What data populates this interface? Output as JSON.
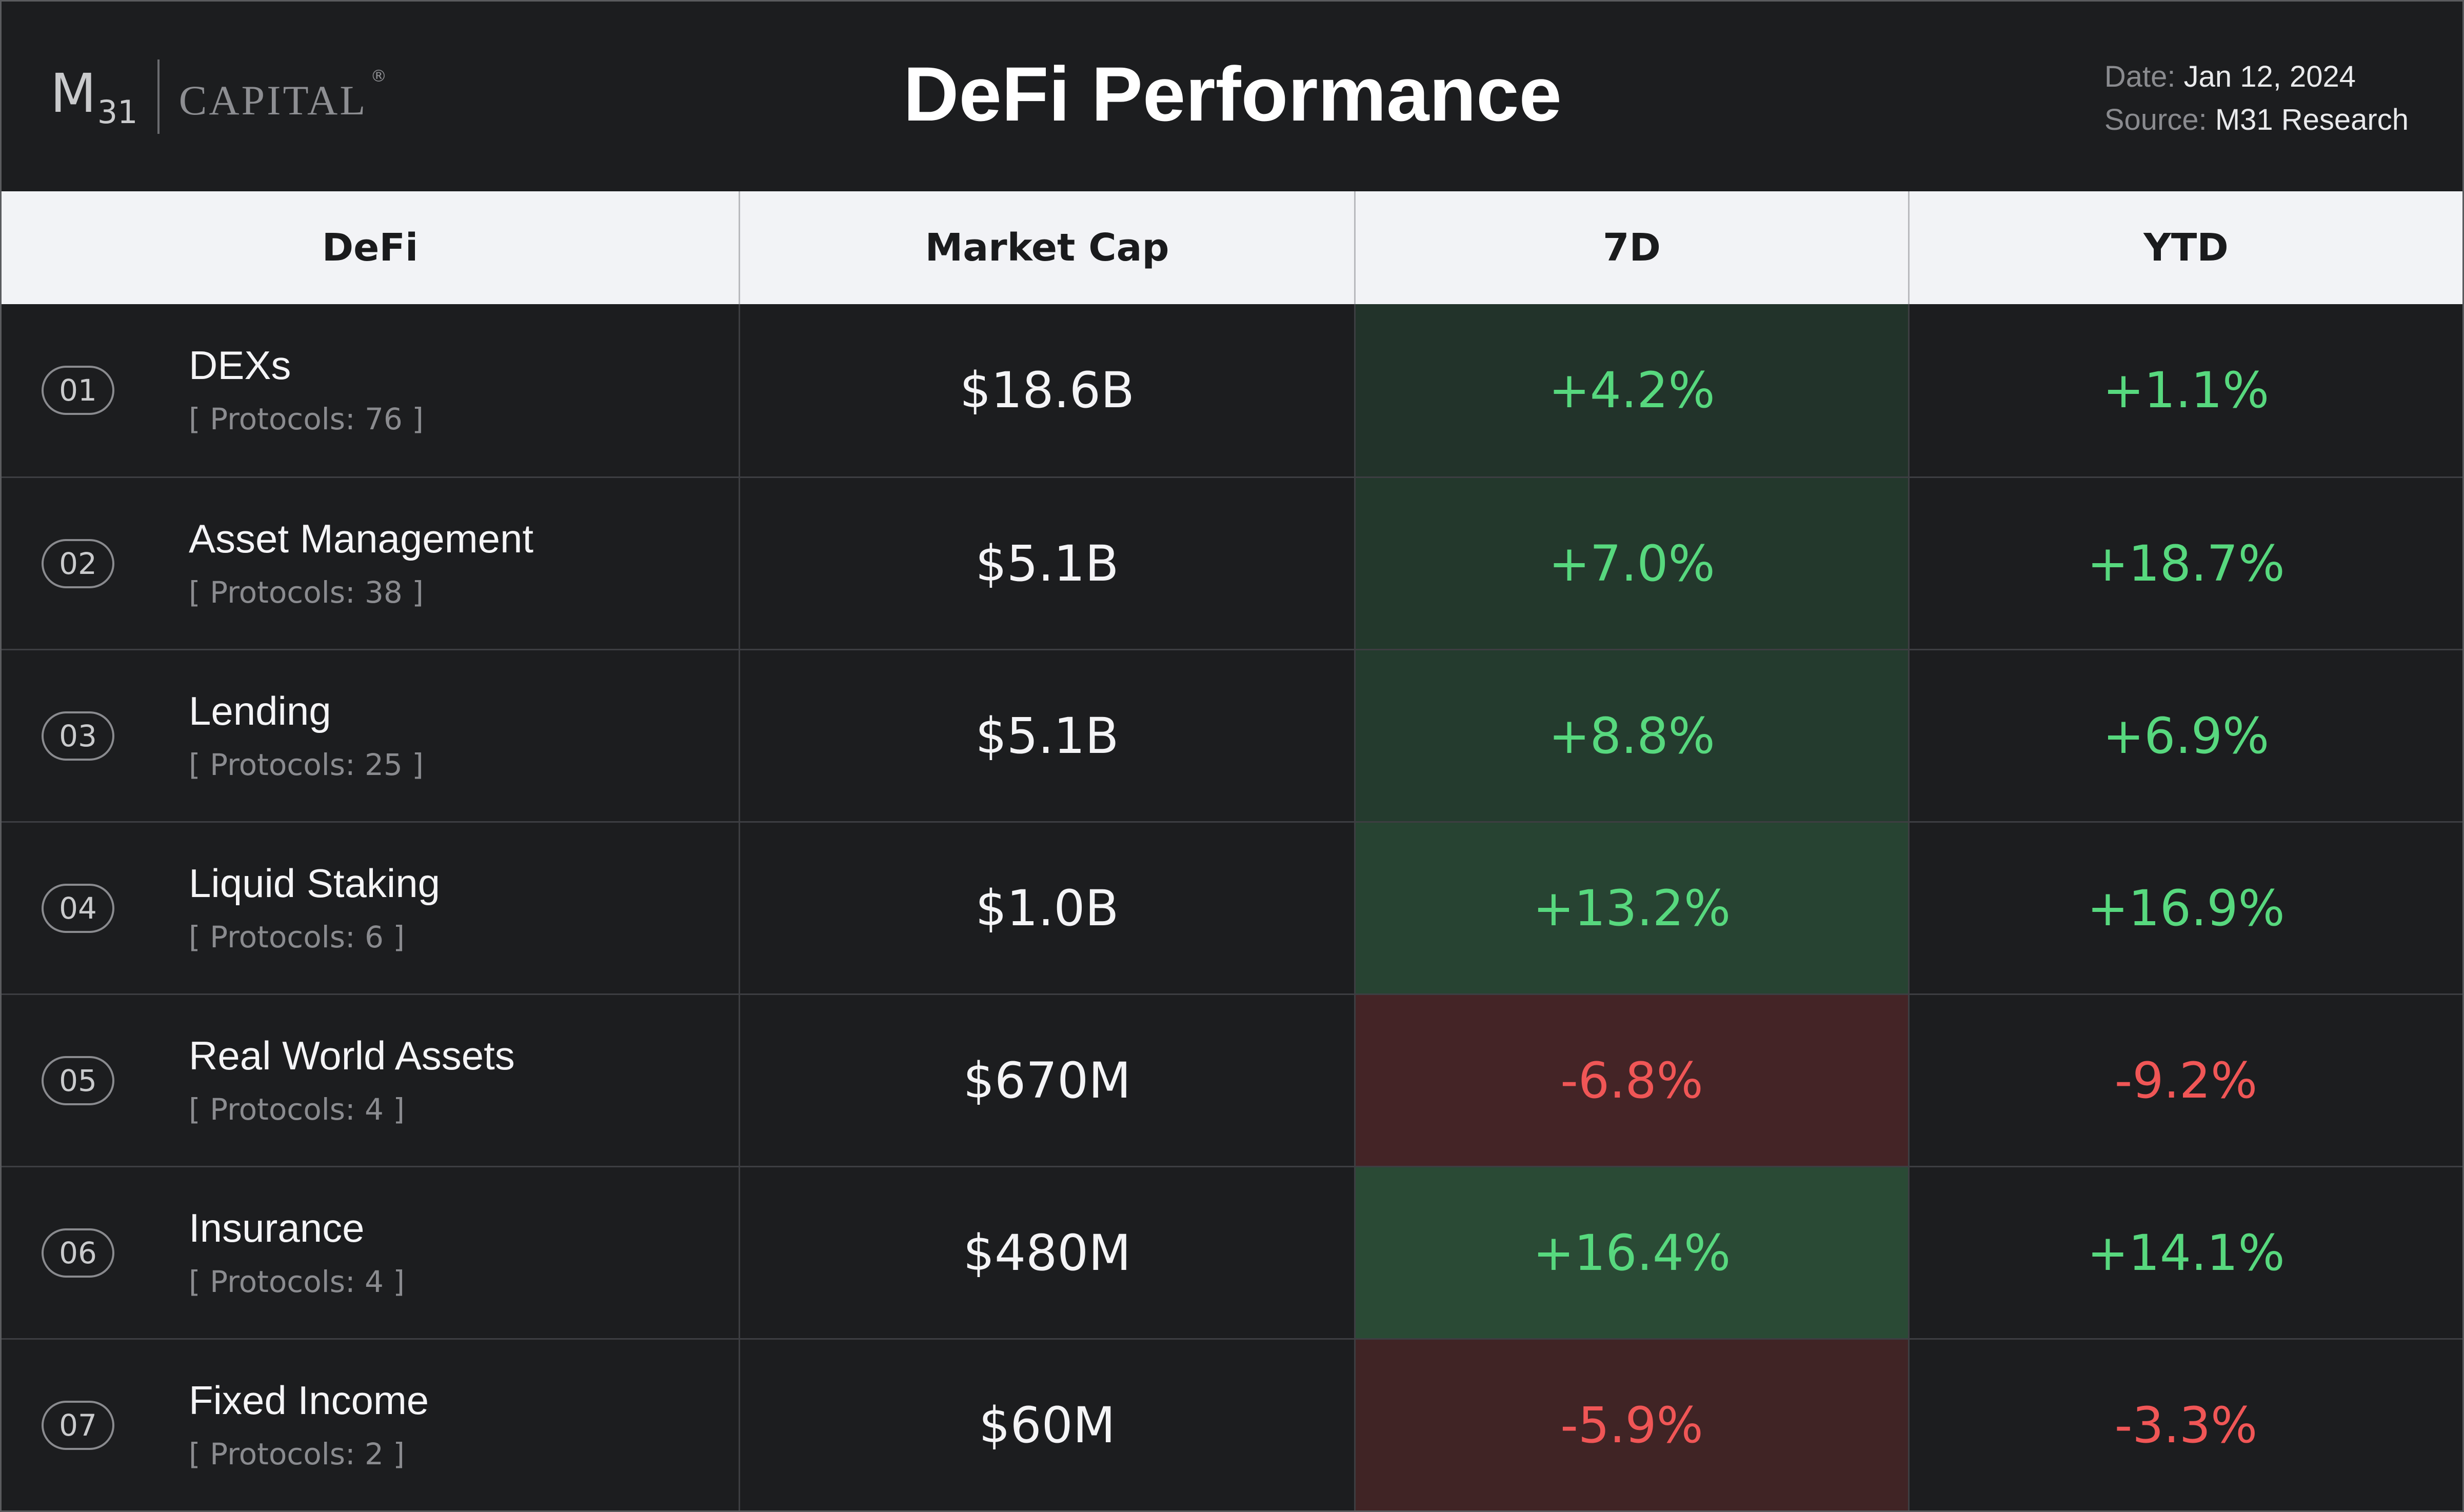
{
  "header": {
    "logo_main": "M",
    "logo_sub": "31",
    "logo_capital": "CAPITAL",
    "logo_registered": "®",
    "title": "DeFi Performance",
    "date_label": "Date:",
    "date_value": "Jan 12, 2024",
    "source_label": "Source:",
    "source_value": "M31 Research"
  },
  "colors": {
    "positive_text": "#57d87e",
    "negative_text": "#f05656",
    "background": "#1c1d1f",
    "header_row": "#f2f3f6"
  },
  "chart_data": {
    "type": "table",
    "title": "DeFi Performance",
    "columns": [
      "DeFi",
      "Market Cap",
      "7D",
      "YTD"
    ],
    "rows": [
      {
        "rank": "01",
        "name": "DEXs",
        "protocols": "[ Protocols: 76 ]",
        "market_cap": "$18.6B",
        "d7": "+4.2%",
        "d7_value": 4.2,
        "ytd": "+1.1%",
        "ytd_value": 1.1
      },
      {
        "rank": "02",
        "name": "Asset Management",
        "protocols": "[ Protocols: 38 ]",
        "market_cap": "$5.1B",
        "d7": "+7.0%",
        "d7_value": 7.0,
        "ytd": "+18.7%",
        "ytd_value": 18.7
      },
      {
        "rank": "03",
        "name": "Lending",
        "protocols": "[ Protocols: 25 ]",
        "market_cap": "$5.1B",
        "d7": "+8.8%",
        "d7_value": 8.8,
        "ytd": "+6.9%",
        "ytd_value": 6.9
      },
      {
        "rank": "04",
        "name": "Liquid Staking",
        "protocols": "[ Protocols: 6 ]",
        "market_cap": "$1.0B",
        "d7": "+13.2%",
        "d7_value": 13.2,
        "ytd": "+16.9%",
        "ytd_value": 16.9
      },
      {
        "rank": "05",
        "name": "Real World Assets",
        "protocols": "[ Protocols: 4 ]",
        "market_cap": "$670M",
        "d7": "-6.8%",
        "d7_value": -6.8,
        "ytd": "-9.2%",
        "ytd_value": -9.2
      },
      {
        "rank": "06",
        "name": "Insurance",
        "protocols": "[ Protocols: 4 ]",
        "market_cap": "$480M",
        "d7": "+16.4%",
        "d7_value": 16.4,
        "ytd": "+14.1%",
        "ytd_value": 14.1
      },
      {
        "rank": "07",
        "name": "Fixed Income",
        "protocols": "[ Protocols: 2 ]",
        "market_cap": "$60M",
        "d7": "-5.9%",
        "d7_value": -5.9,
        "ytd": "-3.3%",
        "ytd_value": -3.3
      }
    ]
  }
}
